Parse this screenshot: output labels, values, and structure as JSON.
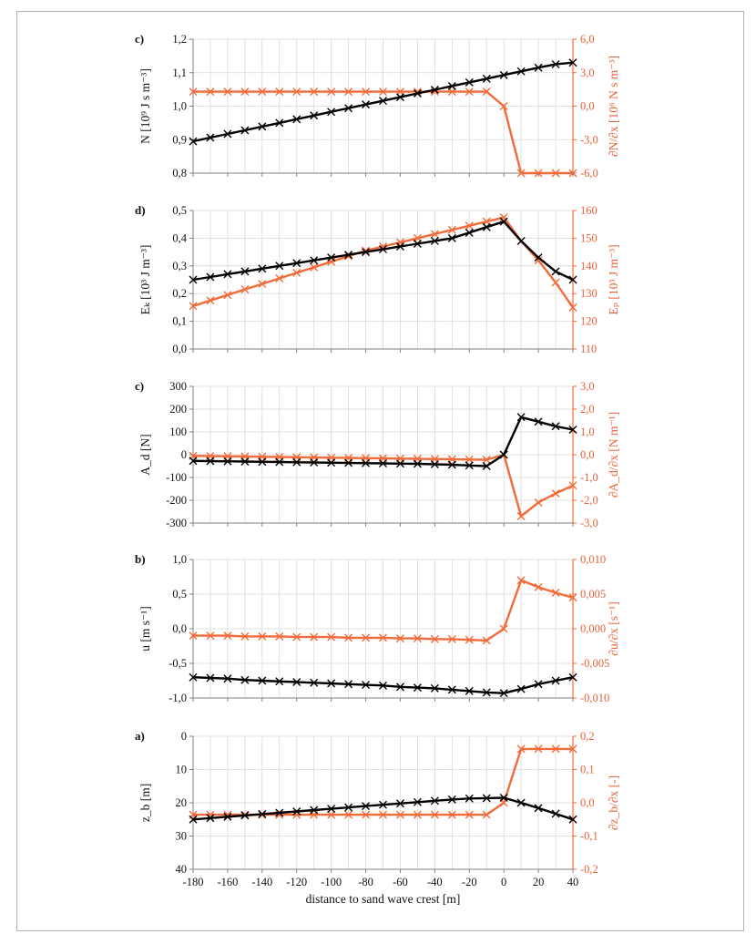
{
  "chart_data": [
    {
      "type": "line",
      "panel_label": "c)",
      "x": [
        -180,
        -170,
        -160,
        -150,
        -140,
        -130,
        -120,
        -110,
        -100,
        -90,
        -80,
        -70,
        -60,
        -50,
        -40,
        -30,
        -20,
        -10,
        0,
        10,
        20,
        30,
        40
      ],
      "ylabel": "N [10⁹ J s m⁻³]",
      "y2label": "∂N/∂x [10⁶ N s m⁻³]",
      "ylim": [
        0.8,
        1.2
      ],
      "y2lim": [
        -6,
        6
      ],
      "yticks": [
        "0,8",
        "0,9",
        "1,0",
        "1,1",
        "1,2"
      ],
      "y2ticks": [
        "-6,0",
        "-3,0",
        "0,0",
        "3,0",
        "6,0"
      ],
      "series": [
        {
          "axis": "left",
          "color": "#000000",
          "values": [
            0.895,
            0.906,
            0.917,
            0.928,
            0.939,
            0.95,
            0.961,
            0.972,
            0.983,
            0.994,
            1.005,
            1.016,
            1.027,
            1.038,
            1.049,
            1.06,
            1.071,
            1.082,
            1.093,
            1.104,
            1.115,
            1.125,
            1.13
          ]
        },
        {
          "axis": "right",
          "color": "#f26b3a",
          "values": [
            1.3,
            1.3,
            1.3,
            1.3,
            1.3,
            1.3,
            1.3,
            1.3,
            1.3,
            1.3,
            1.3,
            1.3,
            1.3,
            1.3,
            1.3,
            1.3,
            1.3,
            1.3,
            0.0,
            -6.0,
            -6.0,
            -6.0,
            -6.0
          ]
        }
      ]
    },
    {
      "type": "line",
      "panel_label": "d)",
      "x": [
        -180,
        -170,
        -160,
        -150,
        -140,
        -130,
        -120,
        -110,
        -100,
        -90,
        -80,
        -70,
        -60,
        -50,
        -40,
        -30,
        -20,
        -10,
        0,
        10,
        20,
        30,
        40
      ],
      "ylabel": "Eₖ [10³ J m⁻³]",
      "y2label": "Eₚ [10³ J m⁻³]",
      "ylim": [
        0,
        0.5
      ],
      "y2lim": [
        110,
        160
      ],
      "yticks": [
        "0,0",
        "0,1",
        "0,2",
        "0,3",
        "0,4",
        "0,5"
      ],
      "y2ticks": [
        "110",
        "120",
        "130",
        "140",
        "150",
        "160"
      ],
      "series": [
        {
          "axis": "left",
          "color": "#000000",
          "values": [
            0.25,
            0.26,
            0.27,
            0.28,
            0.29,
            0.3,
            0.31,
            0.32,
            0.33,
            0.34,
            0.35,
            0.36,
            0.37,
            0.38,
            0.39,
            0.4,
            0.42,
            0.44,
            0.46,
            0.39,
            0.33,
            0.28,
            0.25
          ]
        },
        {
          "axis": "right",
          "color": "#f26b3a",
          "values": [
            125.5,
            127.5,
            129.5,
            131.5,
            133.5,
            135.5,
            137.5,
            139.5,
            141.5,
            143.5,
            145.5,
            147.0,
            148.5,
            150.0,
            151.5,
            153.0,
            154.5,
            156.0,
            157.5,
            149.0,
            142.0,
            134.0,
            125.0
          ]
        }
      ]
    },
    {
      "type": "line",
      "panel_label": "c)",
      "x": [
        -180,
        -170,
        -160,
        -150,
        -140,
        -130,
        -120,
        -110,
        -100,
        -90,
        -80,
        -70,
        -60,
        -50,
        -40,
        -30,
        -20,
        -10,
        0,
        10,
        20,
        30,
        40
      ],
      "ylabel": "A_d [N]",
      "y2label": "∂A_d/∂x [N m⁻¹]",
      "ylim": [
        -300,
        300
      ],
      "y2lim": [
        -3,
        3
      ],
      "yticks": [
        "-300",
        "-200",
        "-100",
        "0",
        "100",
        "200",
        "300"
      ],
      "y2ticks": [
        "-3,0",
        "-2,0",
        "-1,0",
        "0,0",
        "1,0",
        "2,0",
        "3,0"
      ],
      "series": [
        {
          "axis": "left",
          "color": "#000000",
          "values": [
            -27,
            -28,
            -29,
            -30,
            -31,
            -32,
            -33,
            -34,
            -35,
            -36,
            -37,
            -38,
            -39,
            -40,
            -42,
            -44,
            -47,
            -50,
            0,
            165,
            145,
            125,
            110
          ]
        },
        {
          "axis": "right",
          "color": "#f26b3a",
          "values": [
            -0.05,
            -0.06,
            -0.07,
            -0.08,
            -0.09,
            -0.1,
            -0.11,
            -0.12,
            -0.13,
            -0.14,
            -0.15,
            -0.16,
            -0.17,
            -0.18,
            -0.19,
            -0.2,
            -0.21,
            -0.22,
            0.0,
            -2.7,
            -2.1,
            -1.7,
            -1.35
          ]
        }
      ]
    },
    {
      "type": "line",
      "panel_label": "b)",
      "x": [
        -180,
        -170,
        -160,
        -150,
        -140,
        -130,
        -120,
        -110,
        -100,
        -90,
        -80,
        -70,
        -60,
        -50,
        -40,
        -30,
        -20,
        -10,
        0,
        10,
        20,
        30,
        40
      ],
      "ylabel": "u [m s⁻¹]",
      "y2label": "∂u/∂x [s⁻¹]",
      "ylim": [
        -1.0,
        1.0
      ],
      "y2lim": [
        -0.01,
        0.01
      ],
      "yticks": [
        "-1,0",
        "-0,5",
        "0,0",
        "0,5",
        "1,0"
      ],
      "y2ticks": [
        "-0,010",
        "-0,005",
        "0,000",
        "0,005",
        "0,010"
      ],
      "series": [
        {
          "axis": "left",
          "color": "#000000",
          "values": [
            -0.7,
            -0.71,
            -0.72,
            -0.74,
            -0.75,
            -0.76,
            -0.77,
            -0.78,
            -0.79,
            -0.8,
            -0.81,
            -0.82,
            -0.84,
            -0.85,
            -0.86,
            -0.88,
            -0.9,
            -0.92,
            -0.93,
            -0.87,
            -0.8,
            -0.75,
            -0.7
          ]
        },
        {
          "axis": "right",
          "color": "#f26b3a",
          "values": [
            -0.001,
            -0.001,
            -0.001,
            -0.0011,
            -0.0011,
            -0.0011,
            -0.0012,
            -0.0012,
            -0.0012,
            -0.0013,
            -0.0013,
            -0.0013,
            -0.0014,
            -0.0014,
            -0.0015,
            -0.0015,
            -0.0016,
            -0.0017,
            0.0,
            0.007,
            0.006,
            0.0052,
            0.0045
          ]
        }
      ]
    },
    {
      "type": "line",
      "panel_label": "a)",
      "x": [
        -180,
        -170,
        -160,
        -150,
        -140,
        -130,
        -120,
        -110,
        -100,
        -90,
        -80,
        -70,
        -60,
        -50,
        -40,
        -30,
        -20,
        -10,
        0,
        10,
        20,
        30,
        40
      ],
      "ylabel": "z_b [m]",
      "y2label": "∂z_b/∂x [-]",
      "ylim": [
        0,
        40
      ],
      "y_inverted": true,
      "y2lim": [
        -0.2,
        0.2
      ],
      "yticks": [
        "0",
        "10",
        "20",
        "30",
        "40"
      ],
      "y2ticks": [
        "-0,2",
        "-0,1",
        "0,0",
        "0,1",
        "0,2"
      ],
      "series": [
        {
          "axis": "left",
          "color": "#000000",
          "values": [
            25.0,
            24.6,
            24.2,
            23.8,
            23.4,
            23.0,
            22.6,
            22.2,
            21.8,
            21.4,
            21.0,
            20.6,
            20.2,
            19.8,
            19.4,
            19.0,
            18.7,
            18.6,
            18.5,
            20.0,
            21.6,
            23.3,
            25.0
          ]
        },
        {
          "axis": "right",
          "color": "#f26b3a",
          "values": [
            -0.036,
            -0.036,
            -0.036,
            -0.036,
            -0.036,
            -0.036,
            -0.036,
            -0.036,
            -0.036,
            -0.036,
            -0.036,
            -0.036,
            -0.036,
            -0.036,
            -0.036,
            -0.036,
            -0.036,
            -0.036,
            0.0,
            0.162,
            0.162,
            0.162,
            0.162
          ]
        }
      ]
    }
  ],
  "xaxis": {
    "label": "distance to sand wave crest [m]",
    "xlim": [
      -180,
      40
    ],
    "ticks": [
      -180,
      -160,
      -140,
      -120,
      -100,
      -80,
      -60,
      -40,
      -20,
      0,
      20,
      40
    ]
  },
  "colors": {
    "left": "#000000",
    "right": "#f26b3a",
    "grid": "#d9d9d9",
    "axis": "#808080"
  }
}
